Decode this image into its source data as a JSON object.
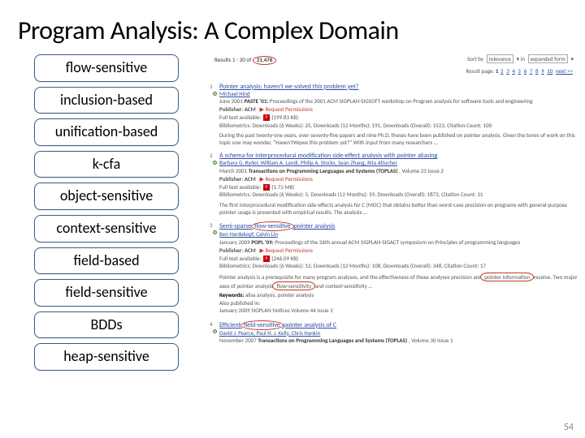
{
  "title": "Program Analysis: A Complex Domain",
  "slide_number": "54",
  "terms": [
    {
      "label": "flow-sensitive"
    },
    {
      "label": "inclusion-based"
    },
    {
      "label": "unification-based"
    },
    {
      "label": "k-cfa"
    },
    {
      "label": "object-sensitive"
    },
    {
      "label": "context-sensitive"
    },
    {
      "label": "field-based"
    },
    {
      "label": "field-sensitive"
    },
    {
      "label": "BDDs"
    },
    {
      "label": "heap-sensitive"
    }
  ],
  "results_header": {
    "prefix": "Results 1 - 20 of",
    "total": "21,476",
    "sort_label": "Sort by",
    "sort_value": "relevance",
    "form_label": "in",
    "form_value": "expanded form",
    "page_label": "Result page:",
    "pages": [
      "1",
      "2",
      "3",
      "4",
      "5",
      "6",
      "7",
      "8",
      "9",
      "10"
    ],
    "next": "next >>"
  },
  "results": [
    {
      "num": "1",
      "title_pre": "Pointer analysis: haven't we solved this problem yet?",
      "authors": "Michael Hind",
      "venue_date": "June 2001",
      "venue_name": "PASTE '01:",
      "venue_rest": "Proceedings of the 2001 ACM SIGPLAN-SIGSOFT workshop on Program analysis for software tools and engineering",
      "publisher": "Publisher: ACM",
      "req": "Request Permissions",
      "full": "Full text available:",
      "size": "(199.83 KB)",
      "biblio": "Bibliometrics: Downloads (6 Weeks): 25,  Downloads (12 Months): 191,  Downloads (Overall): 1523,  Citation Count: 100",
      "abstract": "During the past twenty-one years, over seventy-five papers and nine Ph.D. theses have been published on pointer analysis. Given the tones of work on this topic one may wonder, \"Haven'tWqwe this problem yet?\" With input from many researchers …"
    },
    {
      "num": "2",
      "title_pre": "A schema for interprocedural modification side-effect analysis with pointer aliasing",
      "authors": "Barbara G. Ryder, William A. Landi, Philip A. Stocks, Sean Zhang, Rita Altucher",
      "venue_date": "March 2001",
      "venue_name": "Transactions on Programming Languages and Systems (TOPLAS)",
      "venue_rest": ", Volume 23 Issue 2",
      "publisher": "Publisher: ACM",
      "req": "Request Permissions",
      "full": "Full text available:",
      "size": "(1.72 MB)",
      "biblio": "Bibliometrics: Downloads (6 Weeks): 5,  Downloads (12 Months): 59,  Downloads (Overall): 1873,  Citation Count: 31",
      "abstract": "The first interprocedural modification side-effects analysis for C (MOC) that obtains better than worst-case precision on programs with general-purpose pointer usage is presented with empirical results. The analysis …"
    },
    {
      "num": "3",
      "title_pre": "Semi-sparse",
      "title_circle": "flow-sensitive",
      "title_post": "pointer analysis",
      "authors": "Ben Hardekopf, Calvin Lin",
      "venue_date": "January 2009",
      "venue_name": "POPL '09:",
      "venue_rest": "Proceedings of the 36th annual ACM SIGPLAN-SIGACT symposium on Principles of programming languages",
      "publisher": "Publisher: ACM",
      "req": "Request Permissions",
      "full": "Full text available:",
      "size": "(246.09 KB)",
      "biblio": "Bibliometrics: Downloads (6 Weeks): 12,  Downloads (12 Months): 108,  Downloads (Overall): 348,  Citation Count: 17",
      "abstract_pre": "Pointer analysis is a prerequisite for many program analyses, and the effectiveness of these analyses precision are",
      "abstract_c1": "pointer information",
      "abstract_mid": "receive. Two major axes of pointer analysis",
      "abstract_c2": "flow-sensitivity",
      "abstract_post": "and context-sensitivity …",
      "kw_label": "Keywords:",
      "kw": "alias analysis, pointer analysis",
      "also": "Also published in:",
      "also_val": "January 2009  SIGPLAN Notices Volume 44 Issue 1"
    },
    {
      "num": "4",
      "title_pre": "Efficient",
      "title_circle": "field-sensitive",
      "title_post": "pointer analysis of C",
      "authors": "David J. Pearce, Paul H. J. Kelly, Chris Hankin",
      "venue_date": "November 2007",
      "venue_name": "Transactions on Programming Languages and Systems (TOPLAS)",
      "venue_rest": ", Volume 30 Issue 1"
    }
  ]
}
